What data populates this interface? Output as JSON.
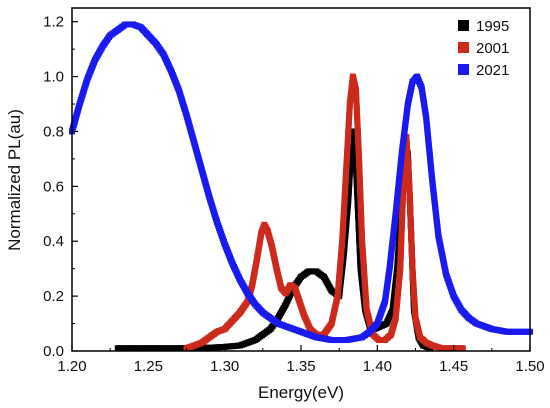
{
  "chart_data": {
    "type": "scatter",
    "xlabel": "Energy(eV)",
    "ylabel": "Normalized PL(au)",
    "xlim": [
      1.2,
      1.5
    ],
    "ylim": [
      0.0,
      1.25
    ],
    "x_ticks": [
      "1.20",
      "1.25",
      "1.30",
      "1.35",
      "1.40",
      "1.45",
      "1.50"
    ],
    "y_ticks": [
      "0.0",
      "0.2",
      "0.4",
      "0.6",
      "0.8",
      "1.0",
      "1.2"
    ],
    "legend_position": "top-right",
    "grid": false,
    "series": [
      {
        "name": "1995",
        "color": "#000000",
        "x": [
          1.23,
          1.25,
          1.27,
          1.29,
          1.3,
          1.31,
          1.32,
          1.33,
          1.335,
          1.34,
          1.345,
          1.35,
          1.355,
          1.36,
          1.365,
          1.37,
          1.375,
          1.378,
          1.381,
          1.383,
          1.385,
          1.387,
          1.389,
          1.392,
          1.395,
          1.398,
          1.402,
          1.406,
          1.41,
          1.413,
          1.416,
          1.418,
          1.42,
          1.422,
          1.424,
          1.427,
          1.43,
          1.435
        ],
        "y": [
          0.01,
          0.01,
          0.01,
          0.012,
          0.015,
          0.02,
          0.04,
          0.08,
          0.12,
          0.17,
          0.23,
          0.27,
          0.29,
          0.29,
          0.27,
          0.22,
          0.2,
          0.35,
          0.55,
          0.75,
          0.8,
          0.55,
          0.3,
          0.15,
          0.09,
          0.08,
          0.09,
          0.1,
          0.15,
          0.3,
          0.55,
          0.75,
          0.72,
          0.45,
          0.15,
          0.05,
          0.02,
          0.01
        ]
      },
      {
        "name": "2001",
        "color": "#cc2a1c",
        "x": [
          1.275,
          1.28,
          1.285,
          1.29,
          1.295,
          1.3,
          1.305,
          1.31,
          1.315,
          1.318,
          1.321,
          1.324,
          1.326,
          1.328,
          1.331,
          1.334,
          1.337,
          1.34,
          1.343,
          1.346,
          1.349,
          1.352,
          1.356,
          1.36,
          1.365,
          1.37,
          1.374,
          1.377,
          1.38,
          1.382,
          1.384,
          1.386,
          1.388,
          1.39,
          1.393,
          1.397,
          1.401,
          1.405,
          1.409,
          1.412,
          1.415,
          1.417,
          1.419,
          1.421,
          1.423,
          1.425,
          1.428,
          1.432,
          1.436,
          1.442,
          1.45,
          1.456
        ],
        "y": [
          0.01,
          0.02,
          0.03,
          0.05,
          0.07,
          0.08,
          0.11,
          0.14,
          0.18,
          0.24,
          0.33,
          0.43,
          0.46,
          0.44,
          0.38,
          0.3,
          0.23,
          0.21,
          0.24,
          0.23,
          0.18,
          0.13,
          0.08,
          0.06,
          0.06,
          0.1,
          0.2,
          0.4,
          0.7,
          0.9,
          1.0,
          0.95,
          0.7,
          0.4,
          0.15,
          0.06,
          0.04,
          0.04,
          0.06,
          0.12,
          0.3,
          0.6,
          0.78,
          0.6,
          0.3,
          0.12,
          0.05,
          0.03,
          0.02,
          0.01,
          0.01,
          0.01
        ]
      },
      {
        "name": "2021",
        "color": "#1a1aee",
        "x": [
          1.2,
          1.205,
          1.21,
          1.215,
          1.22,
          1.225,
          1.23,
          1.235,
          1.24,
          1.245,
          1.25,
          1.255,
          1.26,
          1.265,
          1.27,
          1.275,
          1.28,
          1.285,
          1.29,
          1.295,
          1.3,
          1.305,
          1.31,
          1.315,
          1.32,
          1.325,
          1.33,
          1.335,
          1.34,
          1.345,
          1.35,
          1.355,
          1.36,
          1.365,
          1.37,
          1.375,
          1.38,
          1.385,
          1.39,
          1.395,
          1.4,
          1.405,
          1.408,
          1.412,
          1.416,
          1.42,
          1.423,
          1.426,
          1.429,
          1.432,
          1.436,
          1.44,
          1.445,
          1.45,
          1.455,
          1.46,
          1.465,
          1.47,
          1.475,
          1.48,
          1.485,
          1.49,
          1.495,
          1.5
        ],
        "y": [
          0.8,
          0.9,
          0.99,
          1.06,
          1.11,
          1.15,
          1.17,
          1.19,
          1.19,
          1.18,
          1.15,
          1.12,
          1.08,
          1.02,
          0.95,
          0.86,
          0.76,
          0.66,
          0.56,
          0.47,
          0.39,
          0.32,
          0.26,
          0.21,
          0.17,
          0.14,
          0.12,
          0.1,
          0.09,
          0.08,
          0.07,
          0.06,
          0.05,
          0.045,
          0.04,
          0.04,
          0.04,
          0.045,
          0.05,
          0.07,
          0.1,
          0.18,
          0.3,
          0.5,
          0.72,
          0.9,
          0.98,
          1.0,
          0.96,
          0.85,
          0.62,
          0.42,
          0.28,
          0.2,
          0.15,
          0.12,
          0.1,
          0.09,
          0.08,
          0.075,
          0.07,
          0.07,
          0.07,
          0.07
        ]
      }
    ]
  }
}
